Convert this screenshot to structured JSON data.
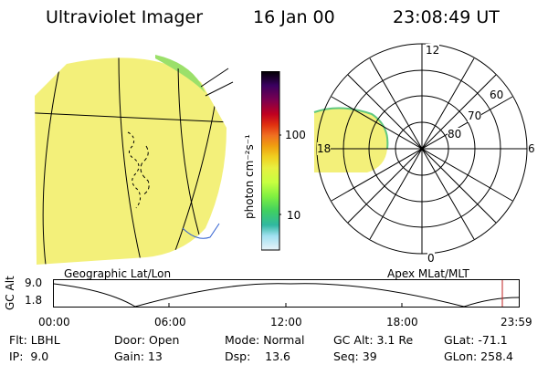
{
  "header": {
    "title": "Ultraviolet Imager",
    "date": "16 Jan 00",
    "time": "23:08:49 UT"
  },
  "colorbar": {
    "unit_label": "photon cm⁻²s⁻¹",
    "ticks": [
      "100",
      "10"
    ],
    "colors": [
      "#000000",
      "#3a0060",
      "#7a0050",
      "#c00020",
      "#e03010",
      "#f07020",
      "#f0a010",
      "#f0d020",
      "#e8f040",
      "#c8ff40",
      "#80f040",
      "#40d060",
      "#30b8a0",
      "#40c8d8",
      "#a0e0f0",
      "#e8f4fa"
    ]
  },
  "geo_panel": {
    "label": "Geographic Lat/Lon",
    "fill_color": "#f3f07a"
  },
  "polar_panel": {
    "label": "Apex MLat/MLT",
    "mlt_labels": {
      "top": "12",
      "right": "6",
      "bottom": "0",
      "left": "18"
    },
    "mlat_labels": [
      "60",
      "70",
      "80"
    ],
    "fill_color": "#f3f07a"
  },
  "altitude_plot": {
    "ylabel": "GC Alt",
    "yticks": [
      "9.0",
      "1.8"
    ],
    "xticks": [
      "00:00",
      "06:00",
      "12:00",
      "18:00",
      "23:59"
    ],
    "marker_color": "#c02020"
  },
  "footer": {
    "row1": {
      "flt": "Flt: LBHL",
      "door": "Door: Open",
      "mode": "Mode: Normal",
      "gcalt": "GC Alt: 3.1 Re",
      "glat": "GLat: -71.1"
    },
    "row2": {
      "ip": "IP:  9.0",
      "gain": "Gain: 13",
      "dsp": "Dsp:    13.6",
      "seq": "Seq: 39",
      "glon": "GLon: 258.4"
    }
  }
}
